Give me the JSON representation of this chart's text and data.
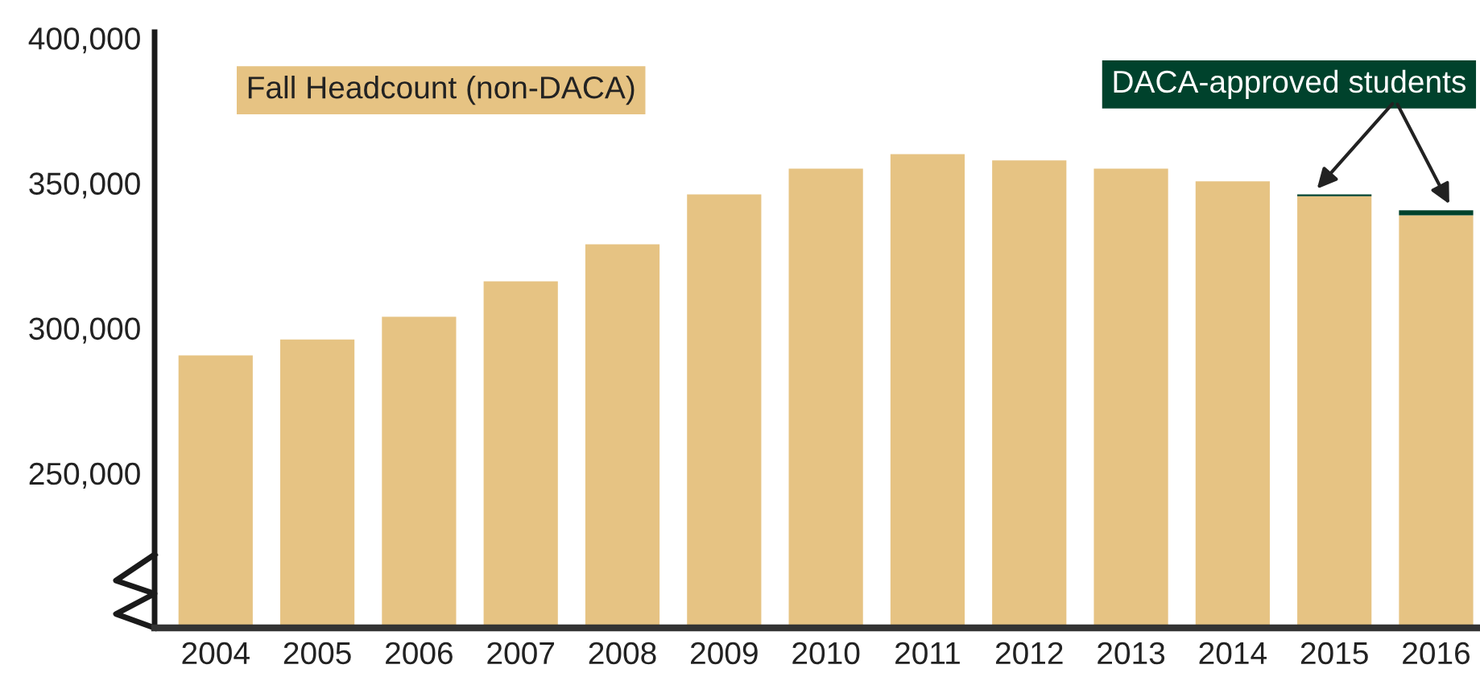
{
  "chart_data": {
    "type": "bar",
    "categories": [
      "2004",
      "2005",
      "2006",
      "2007",
      "2008",
      "2009",
      "2010",
      "2011",
      "2012",
      "2013",
      "2014",
      "2015",
      "2016"
    ],
    "series": [
      {
        "name": "Fall Headcount (non-DACA)",
        "color": "#e6c383",
        "values": [
          290600,
          296100,
          303900,
          316100,
          328900,
          346100,
          355000,
          360000,
          357800,
          355000,
          350600,
          345500,
          338900
        ]
      },
      {
        "name": "DACA-approved students",
        "color": "#00422c",
        "values": [
          null,
          null,
          null,
          null,
          null,
          null,
          null,
          null,
          null,
          null,
          null,
          600,
          1700
        ],
        "base": [
          null,
          null,
          null,
          null,
          null,
          null,
          null,
          null,
          null,
          null,
          null,
          345500,
          338900
        ]
      }
    ],
    "ylim": [
      196700,
      402000
    ],
    "yticks": [
      {
        "value": 250000,
        "label": "250,000"
      },
      {
        "value": 300000,
        "label": "300,000"
      },
      {
        "value": 350000,
        "label": "350,000"
      },
      {
        "value": 400000,
        "label": "400,000"
      }
    ],
    "grid": false
  }
}
